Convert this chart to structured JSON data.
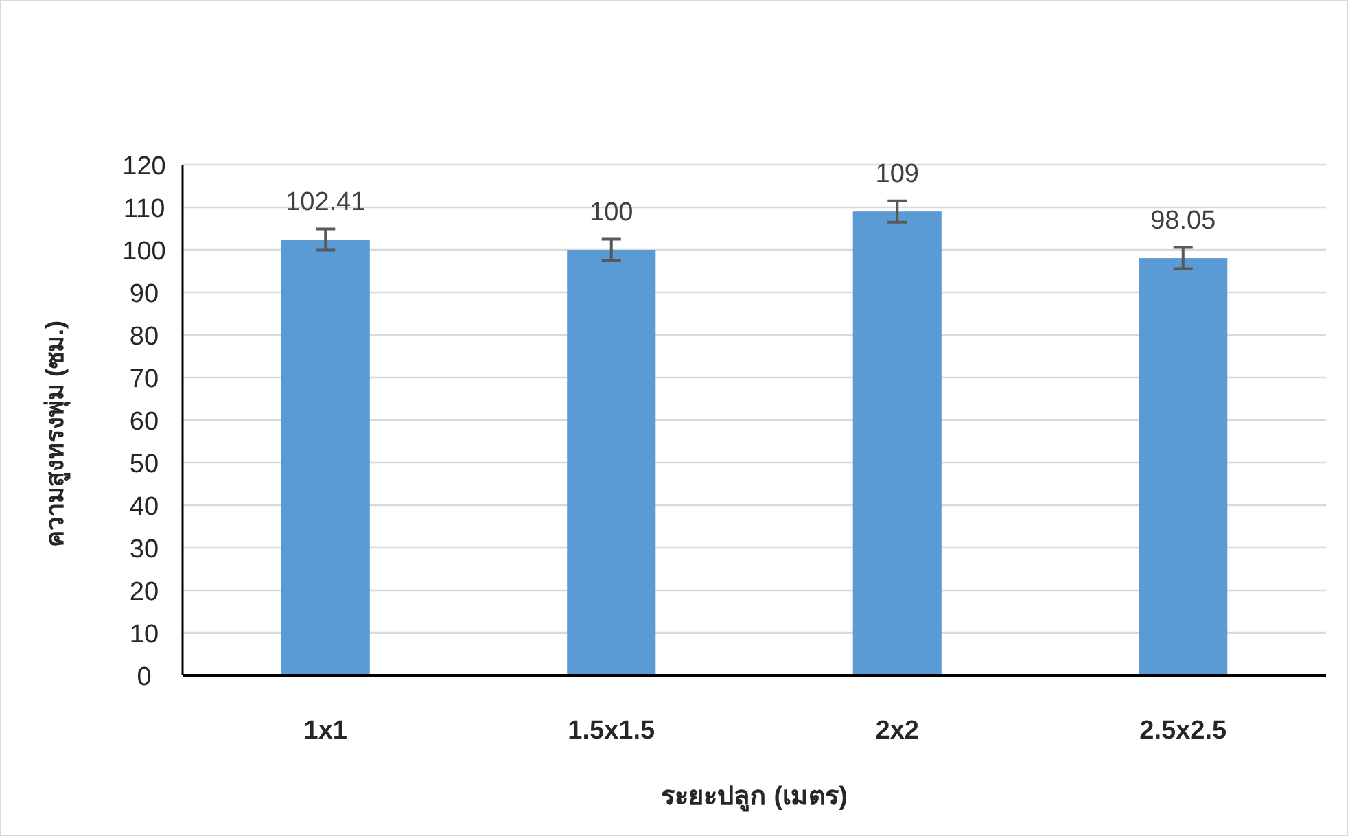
{
  "chart_data": {
    "type": "bar",
    "xlabel": "ระยะปลูก (เมตร)",
    "ylabel": "ความสูงทรงพุ่ม (ซม.)",
    "categories": [
      "1x1",
      "1.5x1.5",
      "2x2",
      "2.5x2.5"
    ],
    "values": [
      102.41,
      100,
      109,
      98.05
    ],
    "errors": [
      2.5,
      2.5,
      2.5,
      2.5
    ],
    "color": "#5b9bd5",
    "ylim": [
      0,
      120
    ],
    "yticks": [
      0,
      10,
      20,
      30,
      40,
      50,
      60,
      70,
      80,
      90,
      100,
      110,
      120
    ],
    "grid": "y",
    "data_labels": true
  }
}
